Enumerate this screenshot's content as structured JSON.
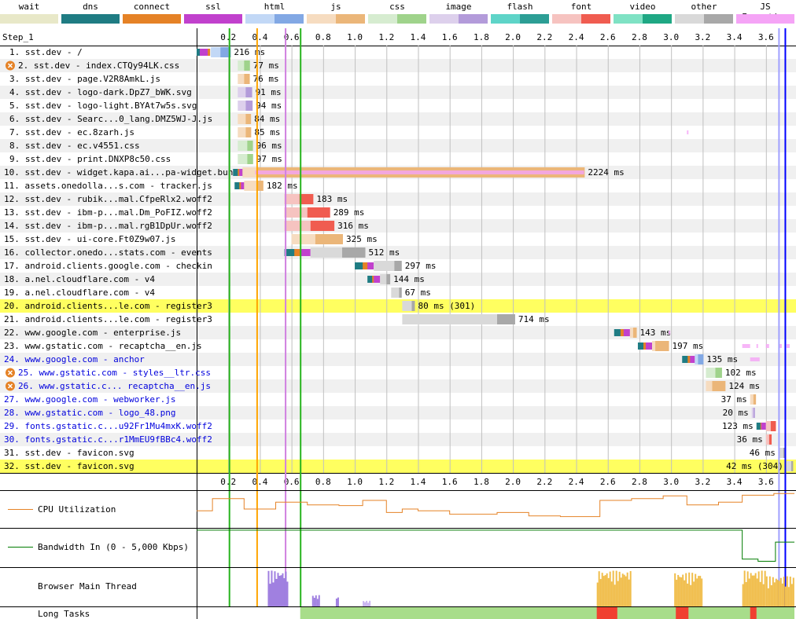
{
  "legend": [
    {
      "key": "wait",
      "label": "wait",
      "a": "#e8e8c8",
      "b": "#e8e8c8"
    },
    {
      "key": "dns",
      "label": "dns",
      "a": "#1f7c83",
      "b": "#1f7c83"
    },
    {
      "key": "connect",
      "label": "connect",
      "a": "#e58226",
      "b": "#e58226"
    },
    {
      "key": "ssl",
      "label": "ssl",
      "a": "#c141cd",
      "b": "#c141cd"
    },
    {
      "key": "html",
      "label": "html",
      "a": "#c2d8f6",
      "b": "#82a8e4"
    },
    {
      "key": "js",
      "label": "js",
      "a": "#f6dcc0",
      "b": "#ebb679"
    },
    {
      "key": "css",
      "label": "css",
      "a": "#d6ecd0",
      "b": "#9fd38b"
    },
    {
      "key": "image",
      "label": "image",
      "a": "#ddd0ec",
      "b": "#b39bda"
    },
    {
      "key": "flash",
      "label": "flash",
      "a": "#5ed4c8",
      "b": "#2c9e95"
    },
    {
      "key": "font",
      "label": "font",
      "a": "#f6c3c0",
      "b": "#f05c50"
    },
    {
      "key": "video",
      "label": "video",
      "a": "#7fe2c4",
      "b": "#1fa884"
    },
    {
      "key": "other",
      "label": "other",
      "a": "#d9d9d9",
      "b": "#a8a8a8"
    },
    {
      "key": "js_exec",
      "label": "JS Execution",
      "a": "#f5a4f6",
      "b": "#f5a4f6"
    }
  ],
  "chart_data": {
    "type": "waterfall",
    "step_label": "Step_1",
    "x_unit": "s",
    "xlim": [
      0,
      3.78
    ],
    "ticks": [
      0.2,
      0.4,
      0.6,
      0.8,
      1.0,
      1.2,
      1.4,
      1.6,
      1.8,
      2.0,
      2.2,
      2.4,
      2.6,
      2.8,
      3.0,
      3.2,
      3.4,
      3.6
    ],
    "tick_labels": [
      "0.2",
      "0.4",
      "0.6",
      "0.8",
      "1.0",
      "1.2",
      "1.4",
      "1.6",
      "1.8",
      "2.0",
      "2.2",
      "2.4",
      "2.6",
      "2.8",
      "3.0",
      "3.2",
      "3.4",
      "3.6"
    ],
    "markers": [
      {
        "t": 0.205,
        "color": "#28b41e"
      },
      {
        "t": 0.38,
        "color": "#ffa500"
      },
      {
        "t": 0.56,
        "color": "#d080e0"
      },
      {
        "t": 0.655,
        "color": "#28b41e"
      },
      {
        "t": 3.68,
        "color": "#a0a0ff"
      },
      {
        "t": 3.72,
        "color": "#0000ff"
      }
    ],
    "requests": [
      {
        "label": "1. sst.dev - /",
        "type": "html",
        "start": 0.0,
        "connect": [
          0.0,
          0.085
        ],
        "ssl": [
          0.02,
          0.07
        ],
        "ttfb": [
          0.09,
          0.15
        ],
        "dl": [
          0.15,
          0.216
        ],
        "ms": "216 ms",
        "color": "black",
        "hl": false,
        "err": false
      },
      {
        "label": "2. sst.dev - index.CTQy94LK.css",
        "type": "css",
        "start": 0.26,
        "ttfb": [
          0.26,
          0.3
        ],
        "dl": [
          0.3,
          0.337
        ],
        "ms": "77 ms",
        "color": "black",
        "hl": false,
        "err": true
      },
      {
        "label": "3. sst.dev - page.V2R8AmkL.js",
        "type": "js",
        "start": 0.26,
        "ttfb": [
          0.26,
          0.3
        ],
        "dl": [
          0.3,
          0.336
        ],
        "ms": "76 ms",
        "color": "black",
        "hl": false,
        "err": false
      },
      {
        "label": "4. sst.dev - logo-dark.DpZ7_bWK.svg",
        "type": "image",
        "start": 0.26,
        "ttfb": [
          0.26,
          0.31
        ],
        "dl": [
          0.31,
          0.351
        ],
        "ms": "91 ms",
        "color": "black",
        "hl": false,
        "err": false
      },
      {
        "label": "5. sst.dev - logo-light.BYAt7w5s.svg",
        "type": "image",
        "start": 0.26,
        "ttfb": [
          0.26,
          0.31
        ],
        "dl": [
          0.31,
          0.354
        ],
        "ms": "94 ms",
        "color": "black",
        "hl": false,
        "err": false
      },
      {
        "label": "6. sst.dev - Searc...0_lang.DMZ5WJ-J.js",
        "type": "js",
        "start": 0.26,
        "ttfb": [
          0.26,
          0.31
        ],
        "dl": [
          0.31,
          0.344
        ],
        "ms": "84 ms",
        "color": "black",
        "hl": false,
        "err": false
      },
      {
        "label": "7. sst.dev - ec.8zarh.js",
        "type": "js",
        "start": 0.26,
        "ttfb": [
          0.26,
          0.31
        ],
        "dl": [
          0.31,
          0.345
        ],
        "ms": "85 ms",
        "color": "black",
        "hl": false,
        "err": false
      },
      {
        "label": "8. sst.dev - ec.v4551.css",
        "type": "css",
        "start": 0.26,
        "ttfb": [
          0.26,
          0.32
        ],
        "dl": [
          0.32,
          0.356
        ],
        "ms": "96 ms",
        "color": "black",
        "hl": false,
        "err": false
      },
      {
        "label": "9. sst.dev - print.DNXP8c50.css",
        "type": "css",
        "start": 0.26,
        "ttfb": [
          0.26,
          0.32
        ],
        "dl": [
          0.32,
          0.357
        ],
        "ms": "97 ms",
        "color": "black",
        "hl": false,
        "err": false
      },
      {
        "label": "10. sst.dev - widget.kapa.ai...pa-widget.bundle.js",
        "type": "js",
        "start": 0.23,
        "connect": [
          0.23,
          0.29
        ],
        "ssl": [
          0.27,
          0.29
        ],
        "ttfb": [
          0.29,
          0.38
        ],
        "dl": [
          0.38,
          2.454
        ],
        "ms": "2224 ms",
        "color": "black",
        "hl": false,
        "err": false
      },
      {
        "label": "11. assets.onedolla...s.com - tracker.js",
        "type": "js",
        "start": 0.24,
        "connect": [
          0.24,
          0.3
        ],
        "ssl": [
          0.28,
          0.3
        ],
        "ttfb": [
          0.3,
          0.38
        ],
        "dl": [
          0.38,
          0.422
        ],
        "ms": "182 ms",
        "color": "black",
        "hl": false,
        "err": false
      },
      {
        "label": "12. sst.dev - rubik...mal.CfpeRlx2.woff2",
        "type": "font",
        "start": 0.555,
        "ttfb": [
          0.555,
          0.65
        ],
        "dl": [
          0.65,
          0.738
        ],
        "ms": "183 ms",
        "color": "black",
        "hl": false,
        "err": false
      },
      {
        "label": "13. sst.dev - ibm-p...mal.Dm_PoFIZ.woff2",
        "type": "font",
        "start": 0.555,
        "ttfb": [
          0.555,
          0.7
        ],
        "dl": [
          0.7,
          0.844
        ],
        "ms": "289 ms",
        "color": "black",
        "hl": false,
        "err": false
      },
      {
        "label": "14. sst.dev - ibm-p...mal.rgB1DpUr.woff2",
        "type": "font",
        "start": 0.555,
        "ttfb": [
          0.555,
          0.72
        ],
        "dl": [
          0.72,
          0.871
        ],
        "ms": "316 ms",
        "color": "black",
        "hl": false,
        "err": false
      },
      {
        "label": "15. sst.dev - ui-core.Ft0Z9w07.js",
        "type": "js",
        "start": 0.6,
        "ttfb": [
          0.6,
          0.75
        ],
        "dl": [
          0.75,
          0.925
        ],
        "ms": "325 ms",
        "color": "black",
        "hl": false,
        "err": false
      },
      {
        "label": "16. collector.onedo...stats.com - events",
        "type": "other",
        "start": 0.555,
        "connect": [
          0.555,
          0.68
        ],
        "ssl": [
          0.66,
          0.72
        ],
        "ttfb": [
          0.72,
          0.92
        ],
        "dl": [
          0.92,
          1.067
        ],
        "ms": "512 ms",
        "color": "black",
        "hl": false,
        "err": false
      },
      {
        "label": "17. android.clients.google.com - checkin",
        "type": "other",
        "start": 1.0,
        "connect": [
          1.0,
          1.1
        ],
        "ssl": [
          1.08,
          1.12
        ],
        "ttfb": [
          1.12,
          1.25
        ],
        "dl": [
          1.25,
          1.297
        ],
        "ms": "297 ms",
        "color": "black",
        "hl": false,
        "err": false
      },
      {
        "label": "18. a.nel.cloudflare.com - v4",
        "type": "other",
        "start": 1.08,
        "connect": [
          1.08,
          1.14
        ],
        "ssl": [
          1.12,
          1.16
        ],
        "ttfb": [
          1.16,
          1.2
        ],
        "dl": [
          1.2,
          1.224
        ],
        "ms": "144 ms",
        "color": "black",
        "hl": false,
        "err": false
      },
      {
        "label": "19. a.nel.cloudflare.com - v4",
        "type": "other",
        "start": 1.23,
        "ttfb": [
          1.23,
          1.28
        ],
        "dl": [
          1.28,
          1.297
        ],
        "ms": "67 ms",
        "color": "black",
        "hl": false,
        "err": false
      },
      {
        "label": "20. android.clients...le.com - register3",
        "type": "other",
        "start": 1.3,
        "ttfb": [
          1.3,
          1.36
        ],
        "dl": [
          1.36,
          1.38
        ],
        "ms": "80 ms (301)",
        "color": "black",
        "hl": true,
        "err": false
      },
      {
        "label": "21. android.clients...le.com - register3",
        "type": "other",
        "start": 1.3,
        "ttfb": [
          1.3,
          1.9
        ],
        "dl": [
          1.9,
          2.014
        ],
        "ms": "714 ms",
        "color": "black",
        "hl": false,
        "err": false
      },
      {
        "label": "22. www.google.com - enterprise.js",
        "type": "js",
        "start": 2.64,
        "connect": [
          2.64,
          2.72
        ],
        "ssl": [
          2.7,
          2.74
        ],
        "ttfb": [
          2.74,
          2.76
        ],
        "dl": [
          2.76,
          2.783
        ],
        "ms": "143 ms",
        "color": "black",
        "hl": false,
        "err": false
      },
      {
        "label": "23. www.gstatic.com - recaptcha__en.js",
        "type": "js",
        "start": 2.79,
        "connect": [
          2.79,
          2.86
        ],
        "ssl": [
          2.84,
          2.88
        ],
        "ttfb": [
          2.88,
          2.9
        ],
        "dl": [
          2.9,
          2.987
        ],
        "ms": "197 ms",
        "color": "black",
        "hl": false,
        "err": false
      },
      {
        "label": "24. www.google.com - anchor",
        "type": "html",
        "start": 3.07,
        "connect": [
          3.07,
          3.14
        ],
        "ssl": [
          3.12,
          3.15
        ],
        "ttfb": [
          3.15,
          3.17
        ],
        "dl": [
          3.17,
          3.205
        ],
        "ms": "135 ms",
        "color": "blue",
        "hl": false,
        "err": false
      },
      {
        "label": "25. www.gstatic.com - styles__ltr.css",
        "type": "css",
        "start": 3.22,
        "ttfb": [
          3.22,
          3.28
        ],
        "dl": [
          3.28,
          3.322
        ],
        "ms": "102 ms",
        "color": "blue",
        "hl": false,
        "err": true
      },
      {
        "label": "26. www.gstatic.c... recaptcha__en.js",
        "type": "js",
        "start": 3.22,
        "ttfb": [
          3.22,
          3.26
        ],
        "dl": [
          3.26,
          3.344
        ],
        "ms": "124 ms",
        "color": "blue",
        "hl": false,
        "err": true
      },
      {
        "label": "27. www.google.com - webworker.js",
        "type": "js",
        "start": 3.5,
        "ttfb": [
          3.5,
          3.52
        ],
        "dl": [
          3.52,
          3.537
        ],
        "ms": "37 ms",
        "color": "blue",
        "hl": false,
        "err": false
      },
      {
        "label": "28. www.gstatic.com - logo_48.png",
        "type": "image",
        "start": 3.51,
        "ttfb": [
          3.51,
          3.52
        ],
        "dl": [
          3.52,
          3.53
        ],
        "ms": "20 ms",
        "color": "blue",
        "hl": false,
        "err": false
      },
      {
        "label": "29. fonts.gstatic.c...u92Fr1Mu4mxK.woff2",
        "type": "font",
        "start": 3.54,
        "connect": [
          3.54,
          3.59
        ],
        "ssl": [
          3.57,
          3.6
        ],
        "ttfb": [
          3.6,
          3.63
        ],
        "dl": [
          3.63,
          3.663
        ],
        "ms": "123 ms",
        "color": "blue",
        "hl": false,
        "err": false
      },
      {
        "label": "30. fonts.gstatic.c...r1MmEU9fBBc4.woff2",
        "type": "font",
        "start": 3.6,
        "ttfb": [
          3.6,
          3.62
        ],
        "dl": [
          3.62,
          3.636
        ],
        "ms": "36 ms",
        "color": "blue",
        "hl": false,
        "err": false
      },
      {
        "label": "31. sst.dev - favicon.svg",
        "type": "other",
        "start": 3.68,
        "ttfb": [
          3.68,
          3.71
        ],
        "dl": [
          3.71,
          3.726
        ],
        "ms": "46 ms",
        "color": "black",
        "hl": false,
        "err": false
      },
      {
        "label": "32. sst.dev - favicon.svg",
        "type": "other",
        "start": 3.73,
        "ttfb": [
          3.73,
          3.76
        ],
        "dl": [
          3.76,
          3.772
        ],
        "ms": "42 ms (304)",
        "color": "black",
        "hl": true,
        "err": false
      }
    ],
    "js_exec": [
      {
        "row": 6,
        "spans": [
          [
            3.1,
            3.105
          ]
        ]
      },
      {
        "row": 9,
        "spans": [
          [
            0.37,
            2.45
          ]
        ]
      },
      {
        "row": 21,
        "spans": [
          [
            2.985,
            2.99
          ]
        ]
      },
      {
        "row": 22,
        "spans": [
          [
            3.45,
            3.5
          ],
          [
            3.54,
            3.55
          ],
          [
            3.6,
            3.62
          ],
          [
            3.68,
            3.7
          ],
          [
            3.73,
            3.75
          ]
        ]
      },
      {
        "row": 23,
        "spans": [
          [
            3.5,
            3.56
          ]
        ]
      }
    ],
    "cpu": {
      "label": "CPU Utilization",
      "color": "#e58226",
      "points": [
        [
          0,
          0.55
        ],
        [
          0.1,
          0.55
        ],
        [
          0.1,
          0.2
        ],
        [
          0.3,
          0.2
        ],
        [
          0.3,
          0.5
        ],
        [
          0.5,
          0.5
        ],
        [
          0.5,
          0.3
        ],
        [
          0.7,
          0.3
        ],
        [
          0.7,
          0.38
        ],
        [
          0.9,
          0.38
        ],
        [
          0.9,
          0.4
        ],
        [
          1.05,
          0.4
        ],
        [
          1.05,
          0.25
        ],
        [
          1.2,
          0.25
        ],
        [
          1.2,
          0.6
        ],
        [
          1.3,
          0.6
        ],
        [
          1.3,
          0.5
        ],
        [
          1.4,
          0.5
        ],
        [
          1.4,
          0.55
        ],
        [
          1.6,
          0.55
        ],
        [
          1.6,
          0.65
        ],
        [
          1.9,
          0.65
        ],
        [
          1.9,
          0.6
        ],
        [
          2.1,
          0.6
        ],
        [
          2.1,
          0.7
        ],
        [
          2.3,
          0.7
        ],
        [
          2.3,
          0.72
        ],
        [
          2.55,
          0.72
        ],
        [
          2.55,
          0.25
        ],
        [
          2.75,
          0.25
        ],
        [
          2.75,
          0.2
        ],
        [
          2.95,
          0.2
        ],
        [
          2.95,
          0.12
        ],
        [
          3.1,
          0.12
        ],
        [
          3.1,
          0.38
        ],
        [
          3.3,
          0.38
        ],
        [
          3.3,
          0.3
        ],
        [
          3.45,
          0.3
        ],
        [
          3.45,
          0.1
        ],
        [
          3.65,
          0.1
        ],
        [
          3.65,
          0.05
        ],
        [
          3.78,
          0.05
        ]
      ]
    },
    "bandwidth": {
      "label": "Bandwidth In (0 - 5,000 Kbps)",
      "color": "#007b00",
      "points": [
        [
          0,
          0.02
        ],
        [
          3.45,
          0.02
        ],
        [
          3.45,
          0.82
        ],
        [
          3.55,
          0.82
        ],
        [
          3.55,
          0.88
        ],
        [
          3.66,
          0.88
        ],
        [
          3.66,
          0.35
        ],
        [
          3.78,
          0.35
        ]
      ]
    },
    "main_thread": {
      "label": "Browser Main Thread",
      "blocks": [
        {
          "t0": 0.45,
          "t1": 0.58,
          "h": 0.95,
          "color": "#9f7fe0"
        },
        {
          "t0": 0.73,
          "t1": 0.78,
          "h": 0.3,
          "color": "#9f7fe0"
        },
        {
          "t0": 0.88,
          "t1": 0.9,
          "h": 0.25,
          "color": "#9f7fe0"
        },
        {
          "t0": 1.05,
          "t1": 1.1,
          "h": 0.15,
          "color": "#c8b4f0"
        },
        {
          "t0": 2.53,
          "t1": 2.75,
          "h": 0.95,
          "color": "#f0bd4a"
        },
        {
          "t0": 3.02,
          "t1": 3.2,
          "h": 0.9,
          "color": "#f0bd4a"
        },
        {
          "t0": 3.45,
          "t1": 3.6,
          "h": 0.95,
          "color": "#f0bd4a"
        },
        {
          "t0": 3.6,
          "t1": 3.78,
          "h": 0.8,
          "color": "#f0bd4a"
        }
      ]
    },
    "long_tasks": {
      "label": "Long Tasks",
      "green": [
        0.655,
        3.78
      ],
      "red": [
        [
          2.53,
          2.66
        ],
        [
          3.03,
          3.11
        ],
        [
          3.5,
          3.54
        ]
      ]
    }
  }
}
